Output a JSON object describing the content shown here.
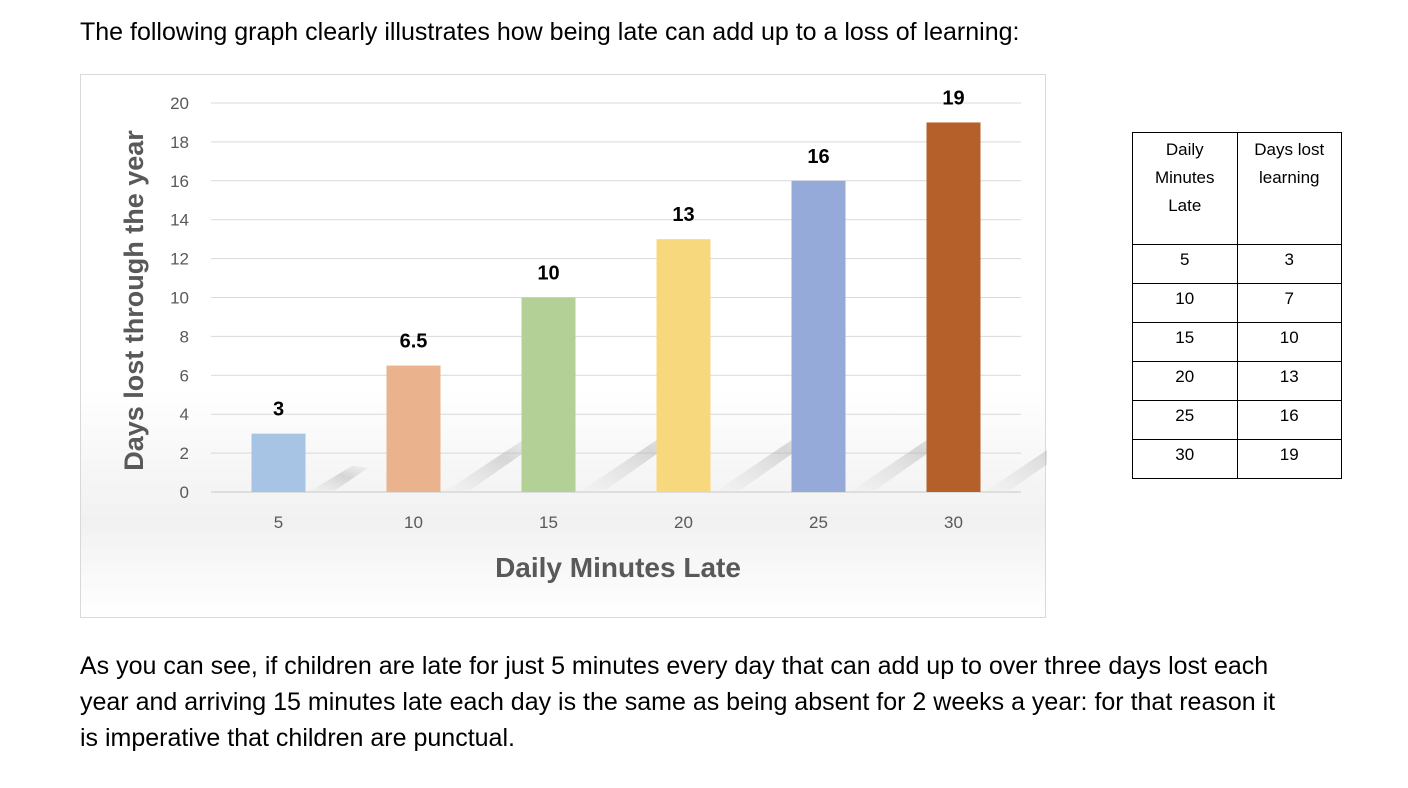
{
  "document": {
    "intro": "The following graph clearly illustrates how being late can add up to a loss of learning:",
    "conclusion": "As you can see, if children are late for just 5 minutes every day that can add up to over three days lost each year and arriving 15 minutes late each day is the same as being absent for 2 weeks a year: for that reason it is imperative that children are punctual."
  },
  "chart_data": {
    "type": "bar",
    "categories": [
      "5",
      "10",
      "15",
      "20",
      "25",
      "30"
    ],
    "values": [
      3,
      6.5,
      10,
      13,
      16,
      19
    ],
    "data_labels": [
      "3",
      "6.5",
      "10",
      "13",
      "16",
      "19"
    ],
    "colors": [
      "#a7c4e5",
      "#eab38e",
      "#b3d197",
      "#f8d87c",
      "#95aad9",
      "#b5602a"
    ],
    "title": "",
    "xlabel": "Daily Minutes Late",
    "ylabel": "Days lost through the year",
    "ylim": [
      0,
      20
    ],
    "yticks": [
      "0",
      "2",
      "4",
      "6",
      "8",
      "10",
      "12",
      "14",
      "16",
      "18",
      "20"
    ],
    "grid": true,
    "legend": "none"
  },
  "table": {
    "headers": [
      "Daily Minutes Late",
      "Days lost learning"
    ],
    "rows": [
      [
        "5",
        "3"
      ],
      [
        "10",
        "7"
      ],
      [
        "15",
        "10"
      ],
      [
        "20",
        "13"
      ],
      [
        "25",
        "16"
      ],
      [
        "30",
        "19"
      ]
    ]
  }
}
